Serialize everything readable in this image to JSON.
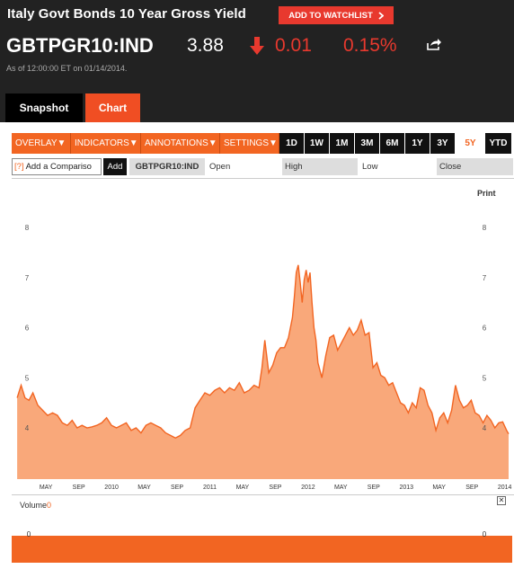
{
  "header": {
    "title": "Italy Govt Bonds 10 Year Gross Yield",
    "watchlist_label": "ADD TO WATCHLIST",
    "ticker": "GBTPGR10:IND",
    "price": "3.88",
    "change": "0.01",
    "change_pct": "0.15%",
    "as_of": "As of 12:00:00 ET on 01/14/2014.",
    "down_color": "#e8392e"
  },
  "tabs": [
    {
      "label": "Snapshot"
    },
    {
      "label": "Chart",
      "active": true
    }
  ],
  "toolbar": {
    "menus": [
      "OVERLAY",
      "INDICATORS",
      "ANNOTATIONS",
      "SETTINGS"
    ],
    "periods": [
      "1D",
      "1W",
      "1M",
      "3M",
      "6M",
      "1Y",
      "3Y",
      "5Y",
      "YTD"
    ],
    "active_period": "5Y",
    "accent": "#f26522"
  },
  "subbar": {
    "compare_prefix": "[?]",
    "compare_placeholder": "Add a Compariso",
    "add_label": "Add",
    "symbol": "GBTPGR10:IND",
    "open_label": "Open",
    "high_label": "High",
    "low_label": "Low",
    "close_label": "Close"
  },
  "chart": {
    "print_label": "Print",
    "volume_label": "Volume",
    "volume_value": "0",
    "close_glyph": "✕"
  },
  "chart_data": [
    {
      "type": "area",
      "y_ticks": [
        "4",
        "5",
        "6",
        "7",
        "8"
      ],
      "ylim": [
        3.0,
        8.5
      ],
      "x_tick_labels": [
        "MAY",
        "SEP",
        "2010",
        "MAY",
        "SEP",
        "2011",
        "MAY",
        "SEP",
        "2012",
        "MAY",
        "SEP",
        "2013",
        "MAY",
        "SEP",
        "2014"
      ],
      "x_tick_positions": [
        2009.333,
        2009.667,
        2010.0,
        2010.333,
        2010.667,
        2011.0,
        2011.333,
        2011.667,
        2012.0,
        2012.333,
        2012.667,
        2013.0,
        2013.333,
        2013.667,
        2014.0
      ],
      "xlim": [
        2009.03,
        2014.04
      ],
      "grid": false,
      "color": "#f26522",
      "fill": "#f9a87a",
      "series": [
        {
          "x": [
            2009.04,
            2009.08,
            2009.12,
            2009.16,
            2009.2,
            2009.25,
            2009.3,
            2009.35,
            2009.4,
            2009.45,
            2009.5,
            2009.55,
            2009.6,
            2009.65,
            2009.7,
            2009.75,
            2009.8,
            2009.85,
            2009.9,
            2009.95,
            2010.0,
            2010.05,
            2010.1,
            2010.15,
            2010.2,
            2010.25,
            2010.3,
            2010.35,
            2010.4,
            2010.45,
            2010.5,
            2010.55,
            2010.6,
            2010.65,
            2010.7,
            2010.75,
            2010.8,
            2010.85,
            2010.9,
            2010.95,
            2011.0,
            2011.05,
            2011.1,
            2011.15,
            2011.2,
            2011.25,
            2011.3,
            2011.35,
            2011.4,
            2011.45,
            2011.5,
            2011.53,
            2011.56,
            2011.6,
            2011.64,
            2011.68,
            2011.72,
            2011.76,
            2011.8,
            2011.84,
            2011.86,
            2011.88,
            2011.9,
            2011.92,
            2011.94,
            2011.96,
            2011.98,
            2012.0,
            2012.02,
            2012.04,
            2012.06,
            2012.08,
            2012.1,
            2012.14,
            2012.18,
            2012.22,
            2012.26,
            2012.3,
            2012.34,
            2012.38,
            2012.42,
            2012.46,
            2012.5,
            2012.54,
            2012.58,
            2012.62,
            2012.66,
            2012.7,
            2012.74,
            2012.78,
            2012.82,
            2012.86,
            2012.9,
            2012.94,
            2012.98,
            2013.02,
            2013.06,
            2013.1,
            2013.14,
            2013.18,
            2013.22,
            2013.26,
            2013.3,
            2013.34,
            2013.38,
            2013.42,
            2013.46,
            2013.5,
            2013.54,
            2013.58,
            2013.62,
            2013.66,
            2013.7,
            2013.74,
            2013.78,
            2013.82,
            2013.86,
            2013.9,
            2013.94,
            2013.98,
            2014.02,
            2014.04
          ],
          "y": [
            4.6,
            4.85,
            4.6,
            4.55,
            4.7,
            4.45,
            4.35,
            4.25,
            4.3,
            4.25,
            4.1,
            4.05,
            4.15,
            4.0,
            4.05,
            4.0,
            4.02,
            4.05,
            4.1,
            4.2,
            4.05,
            4.0,
            4.05,
            4.1,
            3.95,
            4.0,
            3.9,
            4.05,
            4.1,
            4.05,
            4.0,
            3.9,
            3.85,
            3.8,
            3.85,
            3.95,
            4.0,
            4.4,
            4.55,
            4.7,
            4.65,
            4.75,
            4.8,
            4.7,
            4.8,
            4.75,
            4.9,
            4.7,
            4.75,
            4.85,
            4.8,
            5.2,
            5.75,
            5.1,
            5.25,
            5.5,
            5.6,
            5.6,
            5.8,
            6.2,
            6.6,
            7.1,
            7.25,
            6.9,
            6.5,
            6.95,
            7.15,
            6.9,
            7.1,
            6.5,
            6.0,
            5.75,
            5.3,
            5.0,
            5.45,
            5.8,
            5.85,
            5.55,
            5.7,
            5.85,
            6.0,
            5.85,
            5.95,
            6.15,
            5.85,
            5.9,
            5.2,
            5.3,
            5.05,
            5.0,
            4.85,
            4.9,
            4.7,
            4.5,
            4.45,
            4.3,
            4.5,
            4.4,
            4.8,
            4.75,
            4.45,
            4.3,
            3.95,
            4.2,
            4.3,
            4.1,
            4.35,
            4.85,
            4.55,
            4.4,
            4.45,
            4.55,
            4.3,
            4.25,
            4.1,
            4.25,
            4.15,
            4.0,
            4.1,
            4.12,
            3.95,
            3.88
          ]
        }
      ]
    },
    {
      "type": "area",
      "y_ticks": [
        "0"
      ],
      "ylim": [
        0,
        1
      ],
      "x": [
        2009.04,
        2014.04
      ],
      "series": [
        {
          "name": "Volume",
          "values": [
            0,
            0
          ]
        }
      ]
    }
  ]
}
